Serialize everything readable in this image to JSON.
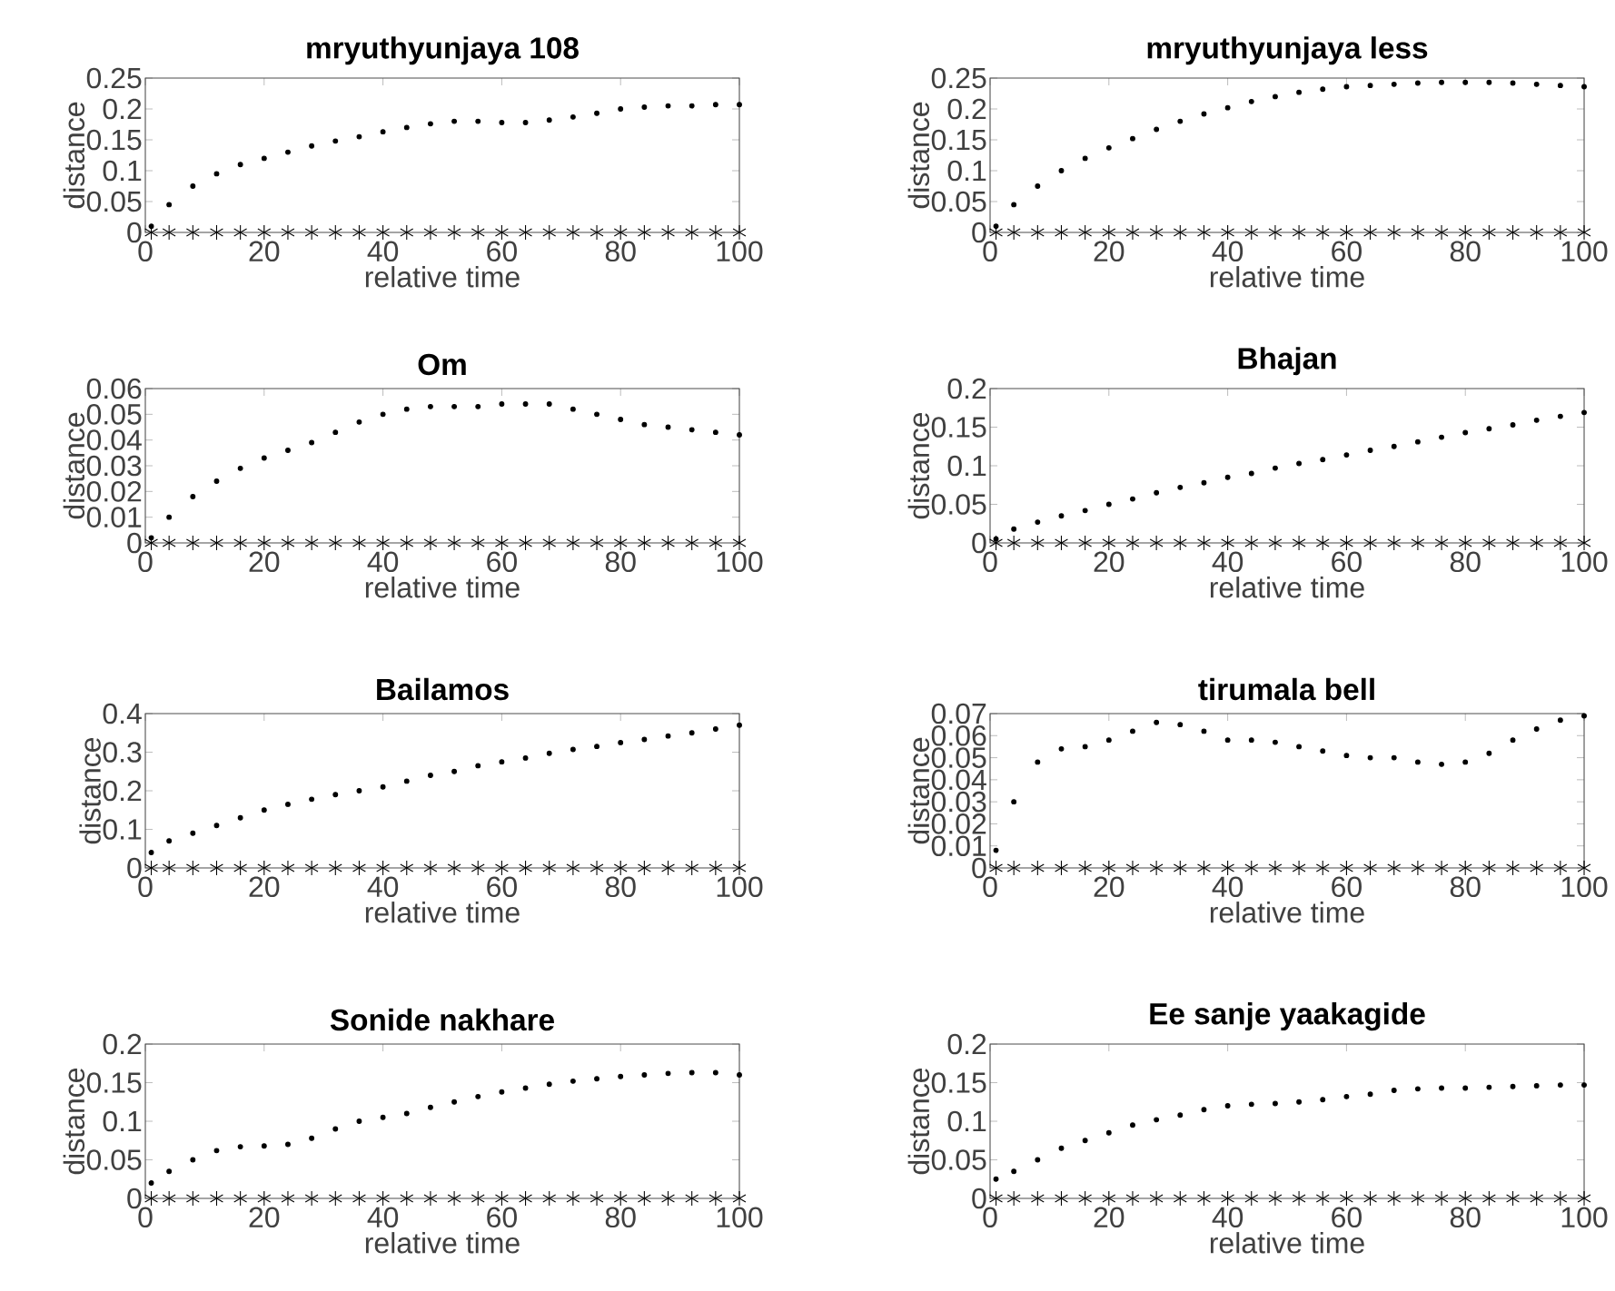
{
  "chart_data": [
    {
      "type": "scatter",
      "title": "mryuthyunjaya 108",
      "xlabel": "relative time",
      "ylabel": "distance",
      "x": [
        1,
        4,
        8,
        12,
        16,
        20,
        24,
        28,
        32,
        36,
        40,
        44,
        48,
        52,
        56,
        60,
        64,
        68,
        72,
        76,
        80,
        84,
        88,
        92,
        96,
        100
      ],
      "xlim": [
        0,
        100
      ],
      "ylim": [
        0,
        0.25
      ],
      "xticks": [
        0,
        20,
        40,
        60,
        80,
        100
      ],
      "yticks": [
        0,
        0.05,
        0.1,
        0.15,
        0.2,
        0.25
      ],
      "series": [
        {
          "color": "#000000",
          "marker": "circle",
          "values": [
            0.01,
            0.045,
            0.075,
            0.095,
            0.11,
            0.12,
            0.13,
            0.14,
            0.148,
            0.155,
            0.163,
            0.17,
            0.176,
            0.18,
            0.18,
            0.178,
            0.178,
            0.182,
            0.187,
            0.193,
            0.2,
            0.203,
            0.205,
            0.205,
            0.207,
            0.207
          ]
        },
        {
          "color": "#000000",
          "marker": "cross",
          "values": [
            0,
            0,
            0,
            0,
            0,
            0,
            0,
            0,
            0,
            0,
            0,
            0,
            0,
            0,
            0,
            0,
            0,
            0,
            0,
            0,
            0,
            0,
            0,
            0,
            0,
            0
          ]
        }
      ]
    },
    {
      "type": "scatter",
      "title": "mryuthyunjaya less",
      "xlabel": "relative time",
      "ylabel": "distance",
      "x": [
        1,
        4,
        8,
        12,
        16,
        20,
        24,
        28,
        32,
        36,
        40,
        44,
        48,
        52,
        56,
        60,
        64,
        68,
        72,
        76,
        80,
        84,
        88,
        92,
        96,
        100
      ],
      "xlim": [
        0,
        100
      ],
      "ylim": [
        0,
        0.25
      ],
      "xticks": [
        0,
        20,
        40,
        60,
        80,
        100
      ],
      "yticks": [
        0,
        0.05,
        0.1,
        0.15,
        0.2,
        0.25
      ],
      "series": [
        {
          "color": "#000000",
          "marker": "circle",
          "values": [
            0.01,
            0.045,
            0.075,
            0.1,
            0.12,
            0.137,
            0.152,
            0.167,
            0.18,
            0.192,
            0.202,
            0.212,
            0.22,
            0.227,
            0.232,
            0.236,
            0.238,
            0.24,
            0.242,
            0.243,
            0.243,
            0.243,
            0.242,
            0.24,
            0.238,
            0.236
          ]
        },
        {
          "color": "#000000",
          "marker": "cross",
          "values": [
            0,
            0,
            0,
            0,
            0,
            0,
            0,
            0,
            0,
            0,
            0,
            0,
            0,
            0,
            0,
            0,
            0,
            0,
            0,
            0,
            0,
            0,
            0,
            0,
            0,
            0
          ]
        }
      ]
    },
    {
      "type": "scatter",
      "title": "Om",
      "xlabel": "relative time",
      "ylabel": "distance",
      "x": [
        1,
        4,
        8,
        12,
        16,
        20,
        24,
        28,
        32,
        36,
        40,
        44,
        48,
        52,
        56,
        60,
        64,
        68,
        72,
        76,
        80,
        84,
        88,
        92,
        96,
        100
      ],
      "xlim": [
        0,
        100
      ],
      "ylim": [
        0,
        0.06
      ],
      "xticks": [
        0,
        20,
        40,
        60,
        80,
        100
      ],
      "yticks": [
        0,
        0.01,
        0.02,
        0.03,
        0.04,
        0.05,
        0.06
      ],
      "series": [
        {
          "color": "#000000",
          "marker": "circle",
          "values": [
            0.002,
            0.01,
            0.018,
            0.024,
            0.029,
            0.033,
            0.036,
            0.039,
            0.043,
            0.047,
            0.05,
            0.052,
            0.053,
            0.053,
            0.053,
            0.054,
            0.054,
            0.054,
            0.052,
            0.05,
            0.048,
            0.046,
            0.045,
            0.044,
            0.043,
            0.042
          ]
        },
        {
          "color": "#000000",
          "marker": "cross",
          "values": [
            0,
            0,
            0,
            0,
            0,
            0,
            0,
            0,
            0,
            0,
            0,
            0,
            0,
            0,
            0,
            0,
            0,
            0,
            0,
            0,
            0,
            0,
            0,
            0,
            0,
            0
          ]
        }
      ]
    },
    {
      "type": "scatter",
      "title": "Bhajan",
      "xlabel": "relative time",
      "ylabel": "distance",
      "x": [
        1,
        4,
        8,
        12,
        16,
        20,
        24,
        28,
        32,
        36,
        40,
        44,
        48,
        52,
        56,
        60,
        64,
        68,
        72,
        76,
        80,
        84,
        88,
        92,
        96,
        100
      ],
      "xlim": [
        0,
        100
      ],
      "ylim": [
        0,
        0.2
      ],
      "xticks": [
        0,
        20,
        40,
        60,
        80,
        100
      ],
      "yticks": [
        0,
        0.05,
        0.1,
        0.15,
        0.2
      ],
      "series": [
        {
          "color": "#000000",
          "marker": "circle",
          "values": [
            0.005,
            0.018,
            0.027,
            0.035,
            0.042,
            0.05,
            0.057,
            0.065,
            0.072,
            0.078,
            0.085,
            0.09,
            0.097,
            0.103,
            0.108,
            0.114,
            0.12,
            0.125,
            0.131,
            0.137,
            0.143,
            0.148,
            0.153,
            0.159,
            0.164,
            0.169
          ]
        },
        {
          "color": "#000000",
          "marker": "cross",
          "values": [
            0,
            0,
            0,
            0,
            0,
            0,
            0,
            0,
            0,
            0,
            0,
            0,
            0,
            0,
            0,
            0,
            0,
            0,
            0,
            0,
            0,
            0,
            0,
            0,
            0,
            0
          ]
        }
      ]
    },
    {
      "type": "scatter",
      "title": "Bailamos",
      "xlabel": "relative time",
      "ylabel": "distance",
      "x": [
        1,
        4,
        8,
        12,
        16,
        20,
        24,
        28,
        32,
        36,
        40,
        44,
        48,
        52,
        56,
        60,
        64,
        68,
        72,
        76,
        80,
        84,
        88,
        92,
        96,
        100
      ],
      "xlim": [
        0,
        100
      ],
      "ylim": [
        0,
        0.4
      ],
      "xticks": [
        0,
        20,
        40,
        60,
        80,
        100
      ],
      "yticks": [
        0,
        0.1,
        0.2,
        0.3,
        0.4
      ],
      "series": [
        {
          "color": "#000000",
          "marker": "circle",
          "values": [
            0.04,
            0.07,
            0.09,
            0.11,
            0.13,
            0.15,
            0.165,
            0.178,
            0.19,
            0.2,
            0.21,
            0.225,
            0.24,
            0.25,
            0.265,
            0.275,
            0.285,
            0.297,
            0.307,
            0.315,
            0.325,
            0.333,
            0.342,
            0.35,
            0.36,
            0.37
          ]
        },
        {
          "color": "#000000",
          "marker": "cross",
          "values": [
            0,
            0,
            0,
            0,
            0,
            0,
            0,
            0,
            0,
            0,
            0,
            0,
            0,
            0,
            0,
            0,
            0,
            0,
            0,
            0,
            0,
            0,
            0,
            0,
            0,
            0
          ]
        }
      ]
    },
    {
      "type": "scatter",
      "title": "tirumala bell",
      "xlabel": "relative time",
      "ylabel": "distance",
      "x": [
        1,
        4,
        8,
        12,
        16,
        20,
        24,
        28,
        32,
        36,
        40,
        44,
        48,
        52,
        56,
        60,
        64,
        68,
        72,
        76,
        80,
        84,
        88,
        92,
        96,
        100
      ],
      "xlim": [
        0,
        100
      ],
      "ylim": [
        0,
        0.07
      ],
      "xticks": [
        0,
        20,
        40,
        60,
        80,
        100
      ],
      "yticks": [
        0,
        0.01,
        0.02,
        0.03,
        0.04,
        0.05,
        0.06,
        0.07
      ],
      "series": [
        {
          "color": "#000000",
          "marker": "circle",
          "values": [
            0.008,
            0.03,
            0.048,
            0.054,
            0.055,
            0.058,
            0.062,
            0.066,
            0.065,
            0.062,
            0.058,
            0.058,
            0.057,
            0.055,
            0.053,
            0.051,
            0.05,
            0.05,
            0.048,
            0.047,
            0.048,
            0.052,
            0.058,
            0.063,
            0.067,
            0.069
          ]
        },
        {
          "color": "#000000",
          "marker": "cross",
          "values": [
            0,
            0,
            0,
            0,
            0,
            0,
            0,
            0,
            0,
            0,
            0,
            0,
            0,
            0,
            0,
            0,
            0,
            0,
            0,
            0,
            0,
            0,
            0,
            0,
            0,
            0
          ]
        }
      ]
    },
    {
      "type": "scatter",
      "title": "Sonide nakhare",
      "xlabel": "relative time",
      "ylabel": "distance",
      "x": [
        1,
        4,
        8,
        12,
        16,
        20,
        24,
        28,
        32,
        36,
        40,
        44,
        48,
        52,
        56,
        60,
        64,
        68,
        72,
        76,
        80,
        84,
        88,
        92,
        96,
        100
      ],
      "xlim": [
        0,
        100
      ],
      "ylim": [
        0,
        0.2
      ],
      "xticks": [
        0,
        20,
        40,
        60,
        80,
        100
      ],
      "yticks": [
        0,
        0.05,
        0.1,
        0.15,
        0.2
      ],
      "series": [
        {
          "color": "#000000",
          "marker": "circle",
          "values": [
            0.02,
            0.035,
            0.05,
            0.062,
            0.067,
            0.068,
            0.07,
            0.078,
            0.09,
            0.1,
            0.105,
            0.11,
            0.118,
            0.125,
            0.132,
            0.138,
            0.143,
            0.148,
            0.152,
            0.155,
            0.158,
            0.16,
            0.162,
            0.163,
            0.163,
            0.16
          ]
        },
        {
          "color": "#000000",
          "marker": "cross",
          "values": [
            0,
            0,
            0,
            0,
            0,
            0,
            0,
            0,
            0,
            0,
            0,
            0,
            0,
            0,
            0,
            0,
            0,
            0,
            0,
            0,
            0,
            0,
            0,
            0,
            0,
            0
          ]
        }
      ]
    },
    {
      "type": "scatter",
      "title": "Ee sanje yaakagide",
      "xlabel": "relative time",
      "ylabel": "distance",
      "x": [
        1,
        4,
        8,
        12,
        16,
        20,
        24,
        28,
        32,
        36,
        40,
        44,
        48,
        52,
        56,
        60,
        64,
        68,
        72,
        76,
        80,
        84,
        88,
        92,
        96,
        100
      ],
      "xlim": [
        0,
        100
      ],
      "ylim": [
        0,
        0.2
      ],
      "xticks": [
        0,
        20,
        40,
        60,
        80,
        100
      ],
      "yticks": [
        0,
        0.05,
        0.1,
        0.15,
        0.2
      ],
      "series": [
        {
          "color": "#000000",
          "marker": "circle",
          "values": [
            0.025,
            0.035,
            0.05,
            0.065,
            0.075,
            0.085,
            0.095,
            0.102,
            0.108,
            0.115,
            0.12,
            0.122,
            0.123,
            0.125,
            0.128,
            0.132,
            0.135,
            0.14,
            0.142,
            0.143,
            0.143,
            0.144,
            0.145,
            0.146,
            0.147,
            0.147
          ]
        },
        {
          "color": "#000000",
          "marker": "cross",
          "values": [
            0,
            0,
            0,
            0,
            0,
            0,
            0,
            0,
            0,
            0,
            0,
            0,
            0,
            0,
            0,
            0,
            0,
            0,
            0,
            0,
            0,
            0,
            0,
            0,
            0,
            0
          ]
        }
      ]
    }
  ]
}
